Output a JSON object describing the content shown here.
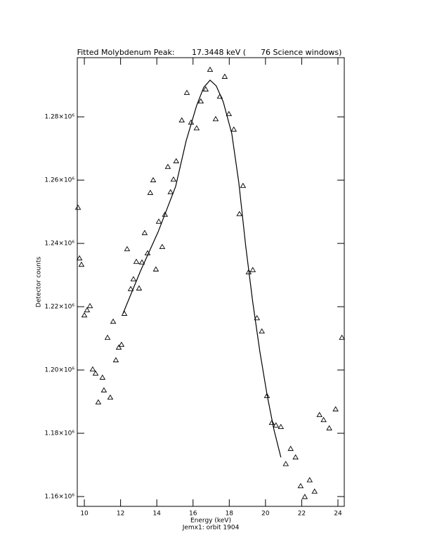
{
  "chart_data": {
    "type": "scatter",
    "title": "Fitted Molybdenum Peak:       17.3448 keV (      76 Science windows)",
    "xlabel": "Energy (keV)",
    "ylabel": "Detector counts",
    "subtitle": "Jemx1: orbit 1904",
    "xlim": [
      9.61,
      24.35
    ],
    "ylim": [
      1156900,
      1298700
    ],
    "xticks": [
      10,
      12,
      14,
      16,
      18,
      20,
      22,
      24
    ],
    "yticks": [
      {
        "value": 1160000,
        "label": "1.16×10⁶"
      },
      {
        "value": 1180000,
        "label": "1.18×10⁶"
      },
      {
        "value": 1200000,
        "label": "1.20×10⁶"
      },
      {
        "value": 1220000,
        "label": "1.22×10⁶"
      },
      {
        "value": 1240000,
        "label": "1.24×10⁶"
      },
      {
        "value": 1260000,
        "label": "1.26×10⁶"
      },
      {
        "value": 1280000,
        "label": "1.28×10⁶"
      }
    ],
    "series": [
      {
        "marker": "triangle",
        "color": "#000000",
        "x": [
          9.65,
          9.73,
          9.84,
          10.0,
          10.15,
          10.31,
          10.46,
          10.62,
          10.77,
          11.0,
          11.08,
          11.28,
          11.43,
          11.59,
          11.74,
          11.9,
          12.05,
          12.21,
          12.36,
          12.56,
          12.71,
          12.87,
          13.02,
          13.18,
          13.33,
          13.49,
          13.64,
          13.8,
          13.95,
          14.11,
          14.3,
          14.45,
          14.61,
          14.76,
          14.92,
          15.07,
          15.38,
          15.66,
          15.89,
          16.2,
          16.43,
          16.7,
          16.94,
          17.25,
          17.48,
          17.75,
          17.98,
          18.25,
          18.56,
          18.76,
          19.07,
          19.3,
          19.53,
          19.8,
          20.08,
          20.35,
          20.58,
          20.85,
          21.12,
          21.39,
          21.66,
          21.94,
          22.17,
          22.44,
          22.71,
          22.98,
          23.21,
          23.52,
          23.87,
          24.22
        ],
        "values": [
          1251300,
          1235300,
          1233300,
          1217300,
          1218900,
          1220200,
          1200200,
          1198900,
          1189800,
          1197600,
          1193600,
          1210200,
          1191300,
          1215300,
          1203100,
          1207100,
          1208000,
          1217800,
          1238200,
          1225600,
          1228700,
          1234200,
          1225800,
          1234000,
          1243300,
          1236900,
          1256000,
          1260000,
          1231800,
          1246900,
          1238900,
          1249100,
          1264200,
          1256200,
          1260200,
          1266000,
          1278900,
          1287600,
          1278200,
          1276400,
          1284900,
          1288700,
          1294900,
          1279300,
          1286400,
          1292700,
          1280900,
          1276000,
          1249300,
          1258200,
          1230900,
          1231600,
          1216400,
          1212200,
          1191800,
          1183300,
          1182500,
          1182000,
          1170300,
          1175100,
          1172400,
          1163300,
          1159900,
          1165200,
          1161600,
          1185800,
          1184200,
          1181600,
          1187600,
          1210200
        ]
      },
      {
        "marker": "line",
        "color": "#000000",
        "x": [
          12.13,
          13.1,
          14.07,
          15.04,
          15.62,
          16.2,
          16.59,
          16.94,
          17.28,
          17.67,
          18.14,
          18.53,
          18.91,
          19.3,
          19.69,
          20.08,
          20.46,
          20.85
        ],
        "values": [
          1217800,
          1231300,
          1243600,
          1258000,
          1272400,
          1283600,
          1289300,
          1291600,
          1289800,
          1284700,
          1274700,
          1259100,
          1239100,
          1221300,
          1205800,
          1192400,
          1181300,
          1172400
        ]
      }
    ]
  }
}
